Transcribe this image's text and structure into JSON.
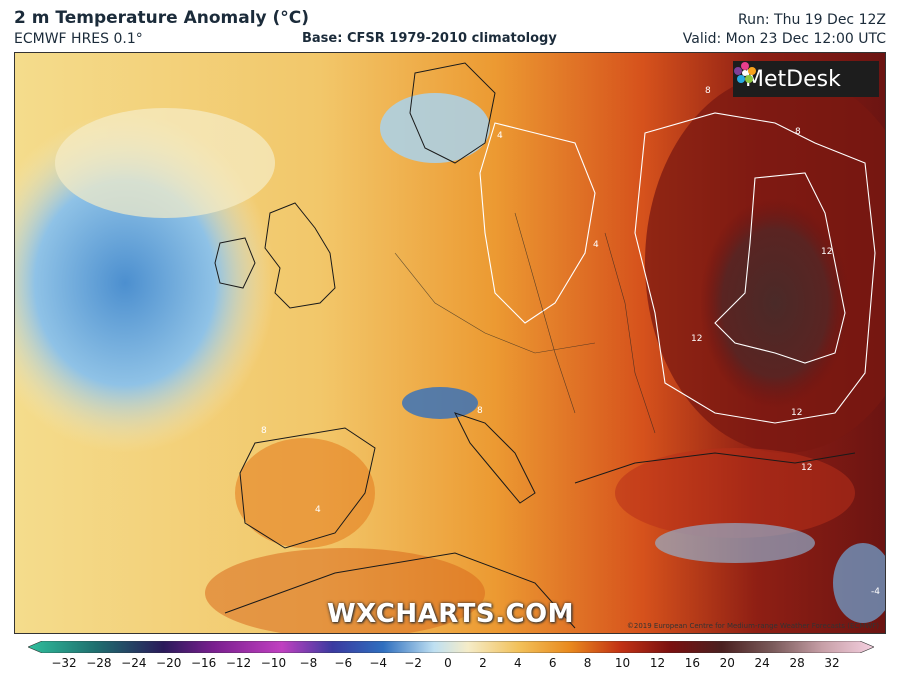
{
  "header": {
    "title": "2 m Temperature Anomaly (°C)",
    "model": "ECMWF HRES 0.1°",
    "base": "Base: CFSR 1979-2010 climatology",
    "run": "Run: Thu 19 Dec 12Z",
    "valid": "Valid: Mon 23 Dec 12:00 UTC"
  },
  "map": {
    "logo_text": "MetDesk",
    "watermark": "WXCHARTS.COM",
    "copyright": "©2019 European Centre for Medium-range Weather Forecasts (ECMWF)",
    "contour_labels": [
      "12",
      "12",
      "12",
      "12",
      "8",
      "8",
      "4",
      "4",
      "8",
      "8",
      "4",
      "-4"
    ]
  },
  "legend": {
    "ticks": [
      "-32",
      "-28",
      "-24",
      "-20",
      "-16",
      "-12",
      "-10",
      "-8",
      "-6",
      "-4",
      "-2",
      "0",
      "2",
      "4",
      "6",
      "8",
      "10",
      "12",
      "16",
      "20",
      "24",
      "28",
      "32"
    ],
    "colors": {
      "cold_extreme": "#2fbf9c",
      "cold_mid": "#7a1f8f",
      "blue": "#2f6fbf",
      "light_blue": "#bfe0f2",
      "neutral": "#f5ecc8",
      "yellow": "#f2c15a",
      "orange": "#e98a1e",
      "red": "#c23214",
      "dark_red": "#7a1010",
      "brown": "#4a2020",
      "pink": "#e9b9c9"
    }
  }
}
